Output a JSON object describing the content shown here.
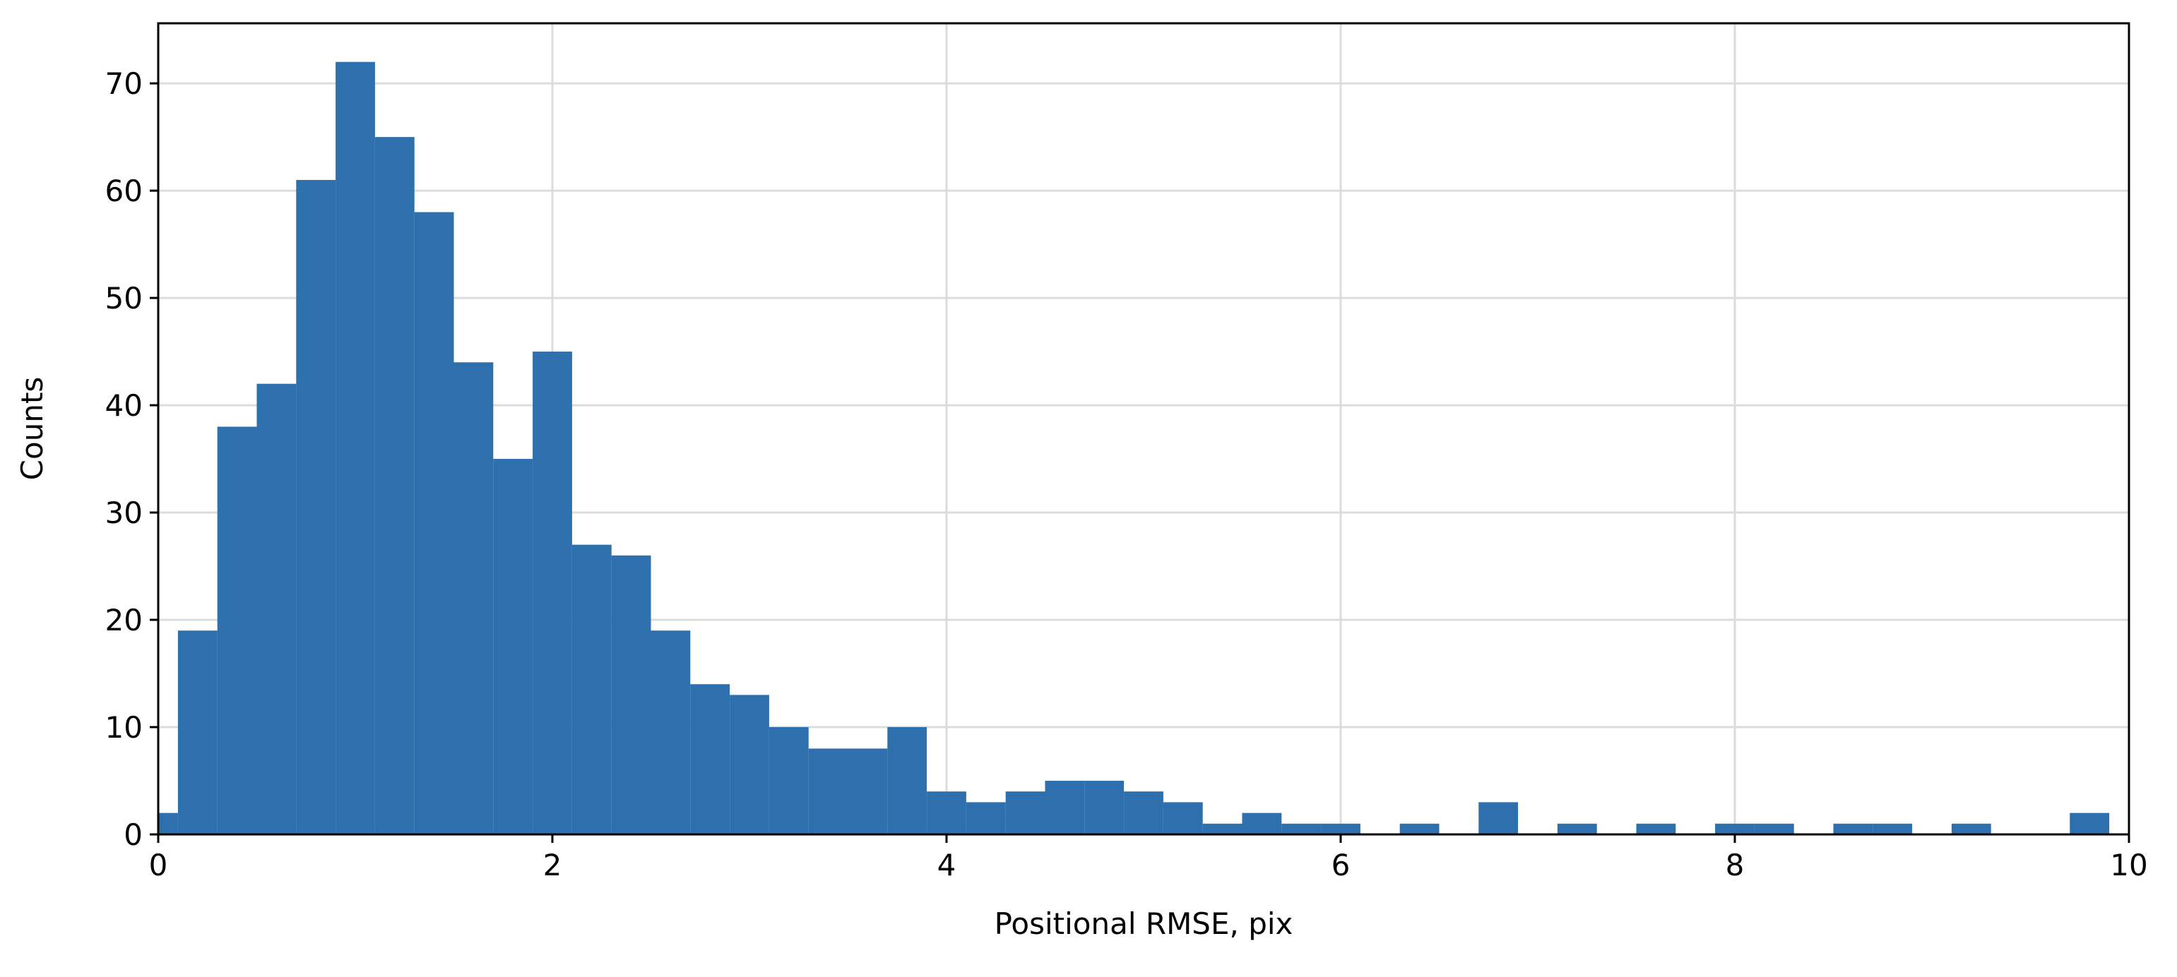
{
  "chart_data": {
    "type": "histogram",
    "xlabel": "Positional RMSE, pix",
    "ylabel": "Counts",
    "color": "#2e6fad",
    "grid": true,
    "bins": [
      -0.1,
      0.1,
      0.3,
      0.5,
      0.7,
      0.9,
      1.1,
      1.3,
      1.5,
      1.7,
      1.9,
      2.1,
      2.3,
      2.5,
      2.7,
      2.9,
      3.1,
      3.3,
      3.5,
      3.7,
      3.9,
      4.1,
      4.3,
      4.5,
      4.7,
      4.9,
      5.1,
      5.3,
      5.5,
      5.7,
      5.9,
      6.1,
      6.3,
      6.5,
      6.7,
      6.9,
      7.1,
      7.3,
      7.5,
      7.7,
      7.9,
      8.1,
      8.3,
      8.5,
      8.7,
      8.9,
      9.1,
      9.3,
      9.5,
      9.7,
      9.9
    ],
    "values": [
      2,
      19,
      38,
      42,
      61,
      72,
      65,
      58,
      44,
      35,
      45,
      27,
      26,
      19,
      14,
      13,
      10,
      8,
      8,
      10,
      4,
      3,
      4,
      5,
      5,
      4,
      3,
      1,
      2,
      1,
      1,
      0,
      1,
      0,
      3,
      0,
      1,
      0,
      1,
      0,
      1,
      1,
      0,
      1,
      1,
      0,
      1,
      0,
      0,
      2
    ],
    "xlim": [
      0,
      10
    ],
    "xticks": [
      0,
      2,
      4,
      6,
      8,
      10
    ],
    "ylim": [
      0,
      75.6
    ],
    "yticks": [
      0,
      10,
      20,
      30,
      40,
      50,
      60,
      70
    ]
  }
}
